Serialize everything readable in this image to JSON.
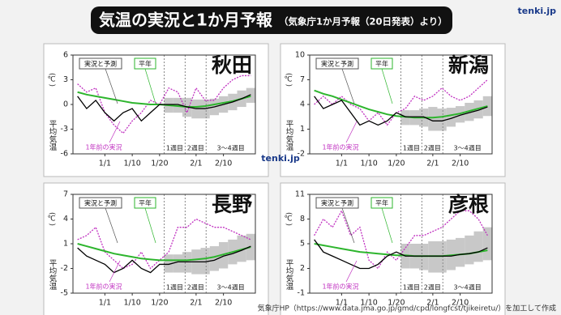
{
  "header": {
    "title": "気温の実況と1か月予報",
    "subtitle": "（気象庁1か月予報（20日発表）より）",
    "logo": "tenki.jp"
  },
  "source": "気象庁HP（https://www.data.jma.go.jp/gmd/cpd/longfcst/tjikeiretu/）を加工して作成",
  "chart_data": [
    {
      "type": "line",
      "title": "秋田",
      "ylabel": "平均気温",
      "yunit": "(℃)",
      "categories": [
        null,
        null,
        null,
        "1/1",
        null,
        null,
        "1/10",
        null,
        null,
        "1/20",
        null,
        null,
        null,
        "2/1",
        null,
        null,
        "2/10",
        null,
        null,
        null
      ],
      "ylim": [
        -6,
        6
      ],
      "yticks": [
        -6,
        -3,
        0,
        3,
        6
      ],
      "annotations": [
        "1週目",
        "2週目",
        "3～4週目"
      ],
      "series": [
        {
          "name": "実況と予測",
          "color": "#000000",
          "values": [
            1,
            -0.5,
            0.5,
            -1,
            -2,
            -1,
            -0.5,
            -2,
            -1,
            0,
            0,
            0,
            -0.3,
            -0.5,
            -0.5,
            -0.3,
            0,
            0.3,
            0.7,
            1.2
          ]
        },
        {
          "name": "平年",
          "color": "#2db52d",
          "values": [
            1.5,
            1.2,
            1,
            0.8,
            0.6,
            0.4,
            0.2,
            0.1,
            0,
            0,
            -0.1,
            -0.2,
            -0.3,
            -0.3,
            -0.2,
            0,
            0.2,
            0.4,
            0.7,
            1
          ]
        },
        {
          "name": "1年前の実況",
          "color": "#c030c0",
          "line_style": "dotted",
          "values": [
            2.5,
            1.5,
            2,
            -1,
            -2.5,
            -3.5,
            -2,
            -1,
            0.5,
            0,
            2,
            1.5,
            -1,
            2,
            0.5,
            0.5,
            2,
            3,
            3.5,
            3.5
          ]
        }
      ],
      "forecast_range": {
        "color": "#c8c8c8",
        "lower": [
          null,
          null,
          null,
          null,
          null,
          null,
          null,
          null,
          null,
          null,
          -1,
          -1,
          -1.5,
          -1.7,
          -1.7,
          -1.3,
          -1,
          -0.7,
          -0.3,
          0.2
        ],
        "upper": [
          null,
          null,
          null,
          null,
          null,
          null,
          null,
          null,
          null,
          null,
          0.8,
          0.8,
          0.8,
          0.6,
          0.6,
          0.7,
          1,
          1.3,
          1.7,
          2
        ]
      }
    },
    {
      "type": "line",
      "title": "新潟",
      "ylabel": "平均気温",
      "yunit": "(℃)",
      "categories": [
        null,
        null,
        null,
        "1/1",
        null,
        null,
        "1/10",
        null,
        null,
        "1/20",
        null,
        null,
        null,
        "2/1",
        null,
        null,
        "2/10",
        null,
        null,
        null
      ],
      "ylim": [
        -2,
        10
      ],
      "yticks": [
        -2,
        1,
        4,
        7,
        10
      ],
      "annotations": [
        "1週目",
        "2週目",
        "3～4週目"
      ],
      "series": [
        {
          "name": "実況と予測",
          "color": "#000000",
          "values": [
            5,
            3.5,
            4,
            4.5,
            3,
            1.5,
            2,
            1.5,
            2,
            3,
            2.5,
            2.5,
            2.5,
            2,
            2,
            2.3,
            2.7,
            3,
            3.3,
            3.7
          ]
        },
        {
          "name": "平年",
          "color": "#2db52d",
          "values": [
            5.7,
            5.3,
            5,
            4.6,
            4.2,
            3.8,
            3.4,
            3.1,
            2.8,
            2.6,
            2.5,
            2.4,
            2.4,
            2.4,
            2.5,
            2.7,
            2.9,
            3.2,
            3.5,
            3.8
          ]
        },
        {
          "name": "1年前の実況",
          "color": "#c030c0",
          "line_style": "dotted",
          "values": [
            4,
            5,
            4,
            5,
            4,
            3.5,
            2,
            3,
            1.5,
            3,
            3.5,
            5,
            4.5,
            5,
            6,
            5,
            4.5,
            5,
            6,
            7
          ]
        }
      ],
      "forecast_range": {
        "color": "#c8c8c8",
        "lower": [
          null,
          null,
          null,
          null,
          null,
          null,
          null,
          null,
          null,
          null,
          1.5,
          1.5,
          1.3,
          0.8,
          0.8,
          1.3,
          1.8,
          2,
          2.3,
          2.6
        ],
        "upper": [
          null,
          null,
          null,
          null,
          null,
          null,
          null,
          null,
          null,
          null,
          3.3,
          3.3,
          3.5,
          3.7,
          3.5,
          3.6,
          3.8,
          4.2,
          4.5,
          5
        ]
      }
    },
    {
      "type": "line",
      "title": "長野",
      "ylabel": "平均気温",
      "yunit": "(℃)",
      "categories": [
        null,
        null,
        null,
        "1/1",
        null,
        null,
        "1/10",
        null,
        null,
        "1/20",
        null,
        null,
        null,
        "2/1",
        null,
        null,
        "2/10",
        null,
        null,
        null
      ],
      "ylim": [
        -5,
        7
      ],
      "yticks": [
        -5,
        -2,
        1,
        4,
        7
      ],
      "annotations": [
        "1週目",
        "2週目",
        "3～4週目"
      ],
      "series": [
        {
          "name": "実況と予測",
          "color": "#000000",
          "values": [
            0.5,
            -0.5,
            -1,
            -1.5,
            -2.5,
            -2,
            -1,
            -2,
            -2.5,
            -1.5,
            -1.5,
            -1.2,
            -1.2,
            -1.2,
            -1.2,
            -1,
            -0.5,
            -0.2,
            0.2,
            0.7
          ]
        },
        {
          "name": "平年",
          "color": "#2db52d",
          "values": [
            1,
            0.7,
            0.4,
            0.1,
            -0.2,
            -0.4,
            -0.6,
            -0.8,
            -0.9,
            -1,
            -1,
            -1,
            -1,
            -0.9,
            -0.8,
            -0.6,
            -0.3,
            0,
            0.3,
            0.6
          ]
        },
        {
          "name": "1年前の実況",
          "color": "#c030c0",
          "line_style": "dotted",
          "values": [
            1.5,
            2,
            3,
            0,
            -1,
            -2,
            -1.5,
            0,
            -2,
            -1,
            0,
            3,
            3,
            4,
            3.5,
            3,
            3,
            2.5,
            2,
            1.5
          ]
        }
      ],
      "forecast_range": {
        "color": "#c8c8c8",
        "lower": [
          null,
          null,
          null,
          null,
          null,
          null,
          null,
          null,
          null,
          null,
          -2.5,
          -2.5,
          -2.5,
          -2.7,
          -2.7,
          -2.3,
          -2,
          -1.5,
          -1.2,
          -1
        ],
        "upper": [
          null,
          null,
          null,
          null,
          null,
          null,
          null,
          null,
          null,
          null,
          -0.3,
          -0.3,
          0,
          0.3,
          0.5,
          0.7,
          1.2,
          1.5,
          2,
          2.2
        ]
      }
    },
    {
      "type": "line",
      "title": "彦根",
      "ylabel": "平均気温",
      "yunit": "(℃)",
      "categories": [
        null,
        null,
        null,
        "1/1",
        null,
        null,
        "1/10",
        null,
        null,
        "1/20",
        null,
        null,
        null,
        "2/1",
        null,
        null,
        "2/10",
        null,
        null,
        null
      ],
      "ylim": [
        -1,
        11
      ],
      "yticks": [
        -1,
        2,
        5,
        8,
        11
      ],
      "annotations": [
        "1週目",
        "2週目",
        "3～4週目"
      ],
      "series": [
        {
          "name": "実況と予測",
          "color": "#000000",
          "values": [
            5.5,
            4,
            3.5,
            3,
            2.5,
            2,
            2,
            2.5,
            3.5,
            4,
            3.5,
            3.5,
            3.5,
            3.5,
            3.5,
            3.5,
            3.7,
            3.8,
            4,
            4.5
          ]
        },
        {
          "name": "平年",
          "color": "#2db52d",
          "values": [
            5,
            4.8,
            4.6,
            4.4,
            4.2,
            4,
            3.9,
            3.8,
            3.7,
            3.6,
            3.6,
            3.5,
            3.5,
            3.5,
            3.5,
            3.6,
            3.7,
            3.8,
            4,
            4.2
          ]
        },
        {
          "name": "1年前の実況",
          "color": "#c030c0",
          "line_style": "dotted",
          "values": [
            6,
            8,
            7,
            9,
            6,
            7,
            3,
            2,
            4,
            3,
            4.5,
            6,
            6,
            6.5,
            7,
            8,
            9,
            9,
            8,
            6
          ]
        }
      ],
      "forecast_range": {
        "color": "#c8c8c8",
        "lower": [
          null,
          null,
          null,
          null,
          null,
          null,
          null,
          null,
          null,
          null,
          2,
          2,
          1.8,
          1.5,
          1.5,
          1.8,
          2.2,
          2.5,
          2.8,
          3
        ],
        "upper": [
          null,
          null,
          null,
          null,
          null,
          null,
          null,
          null,
          null,
          null,
          5,
          5,
          5,
          5.3,
          5.3,
          5.5,
          5.7,
          6,
          6.5,
          7
        ]
      }
    }
  ]
}
